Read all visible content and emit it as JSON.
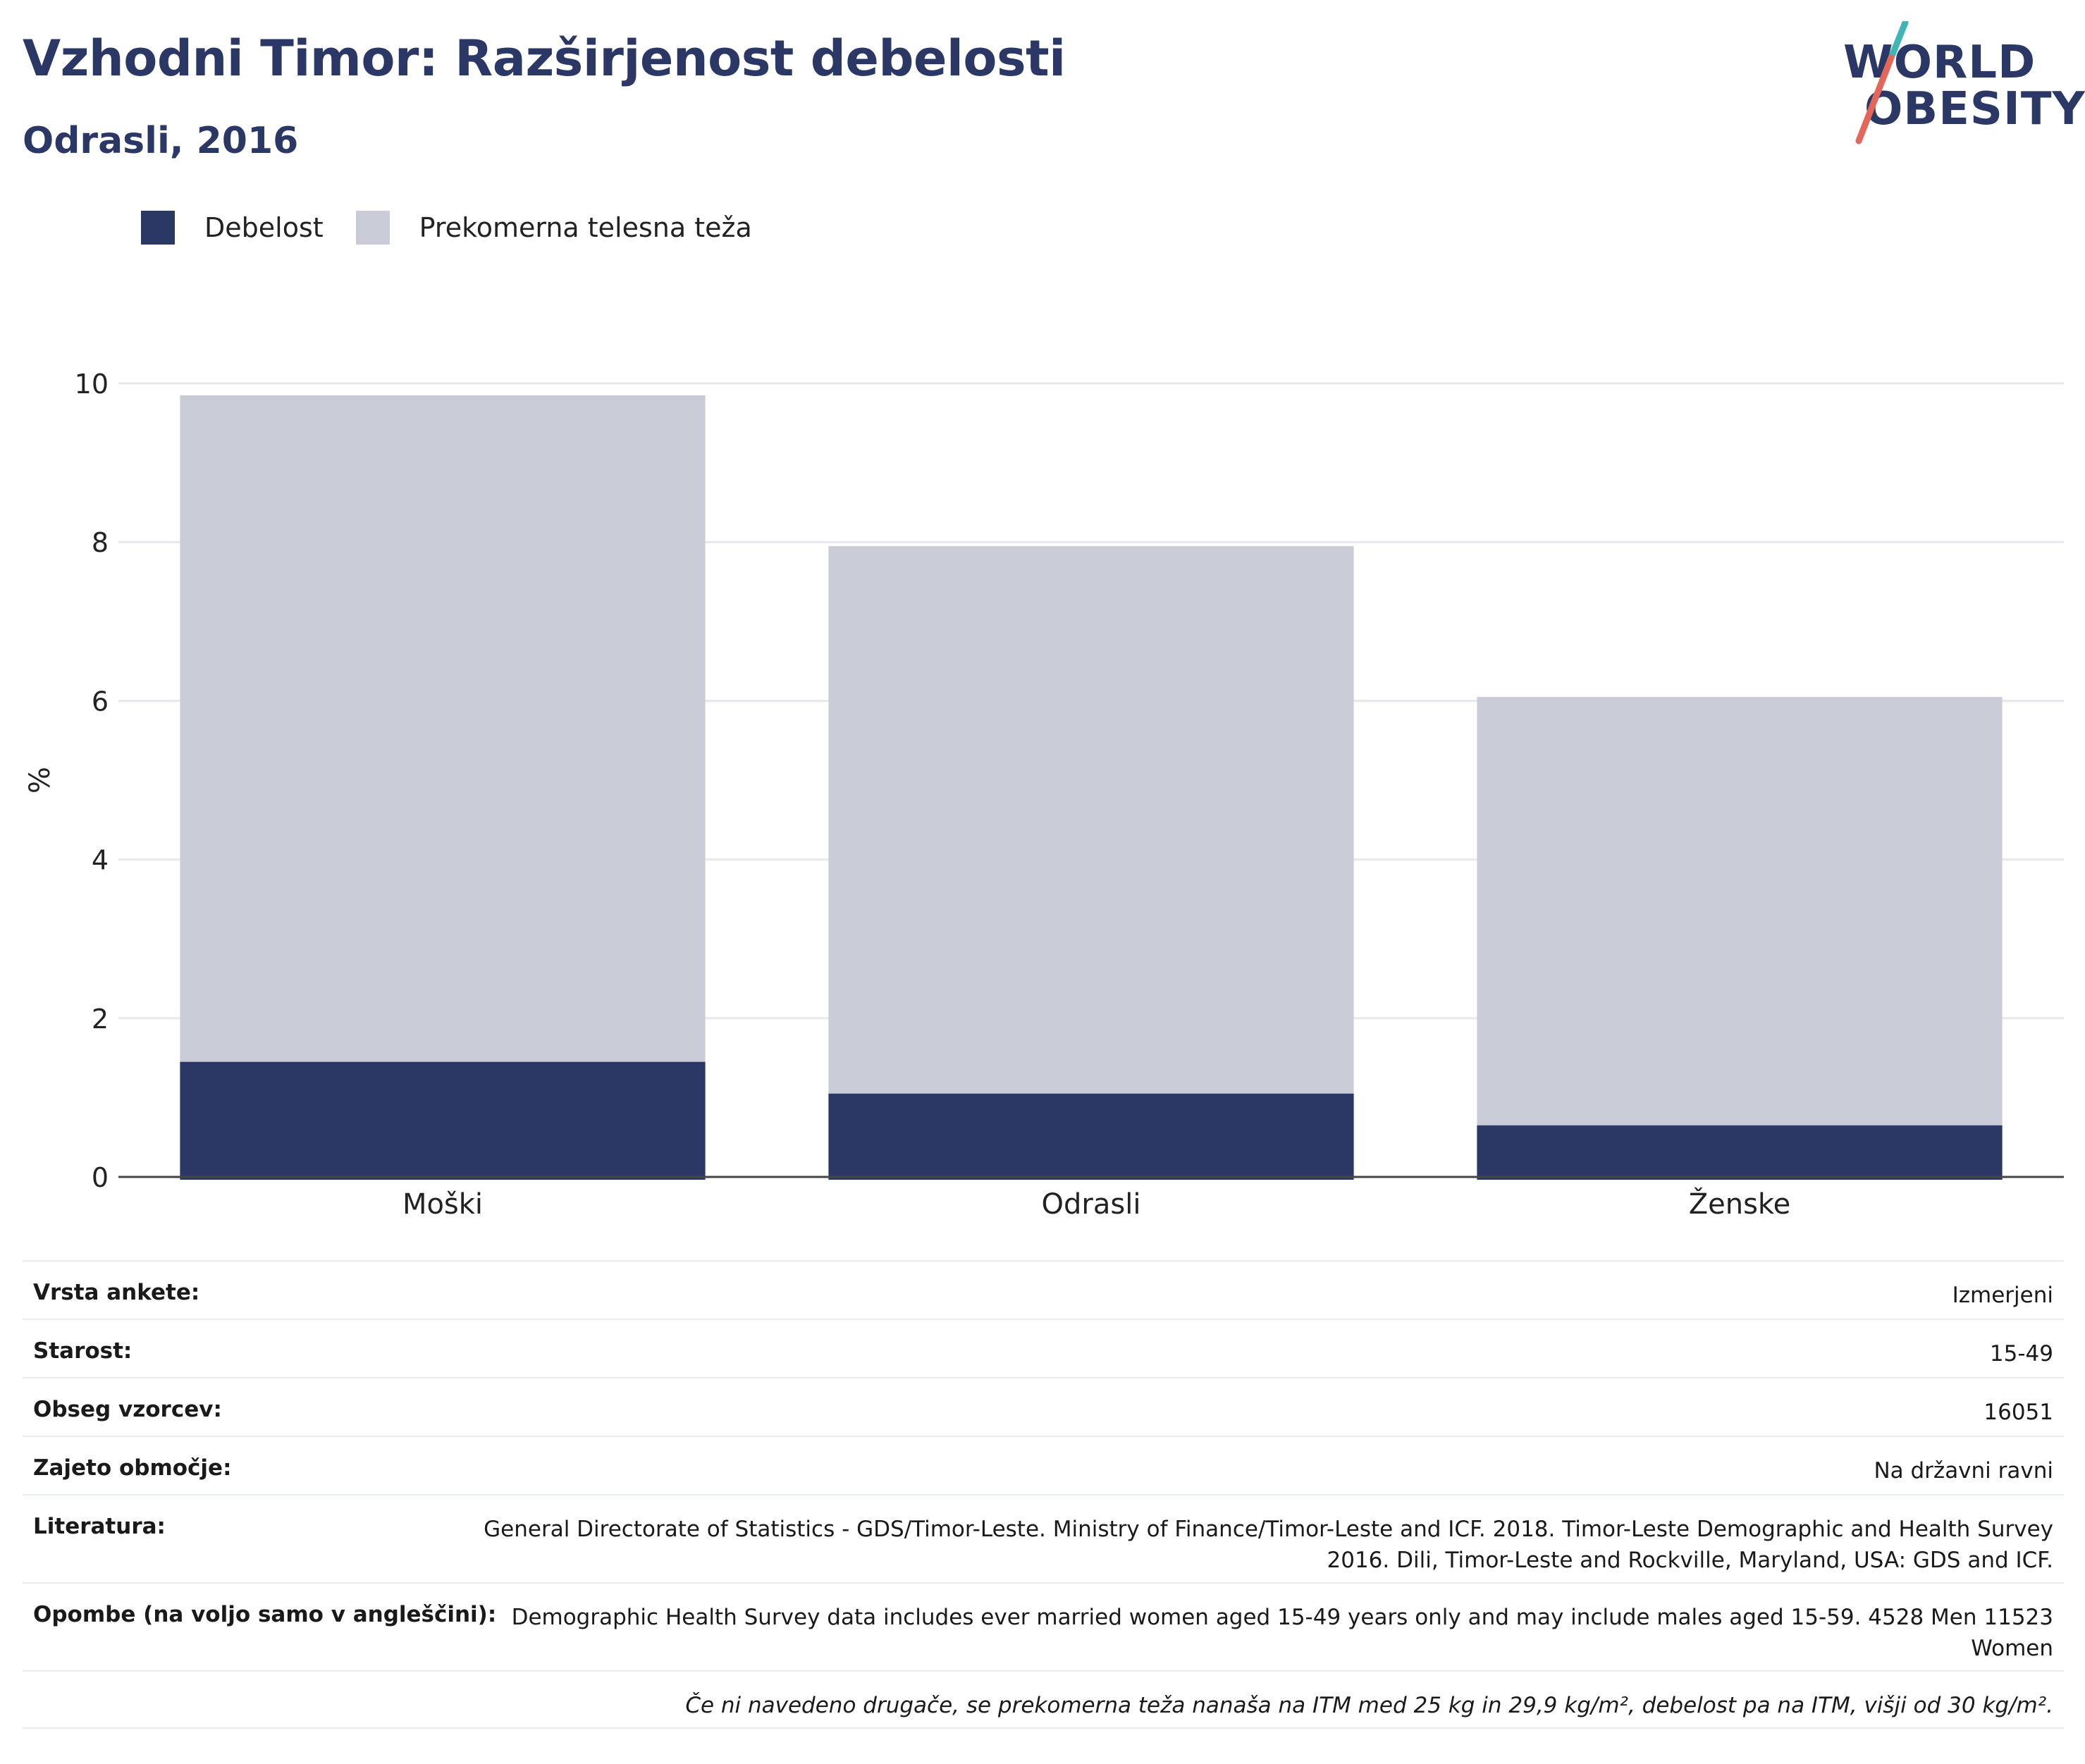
{
  "header": {
    "title": "Vzhodni Timor: Razširjenost debelosti",
    "subtitle": "Odrasli, 2016"
  },
  "logo": {
    "line1": "WORLD",
    "line2": "OBESITY",
    "accent_teal": "#3fb6b5",
    "accent_red": "#e2675a"
  },
  "legend": [
    {
      "label": "Debelost",
      "color": "#2b3764"
    },
    {
      "label": "Prekomerna telesna teža",
      "color": "#c9ccd7"
    }
  ],
  "chart_data": {
    "type": "bar",
    "stacked": false,
    "overlay": true,
    "categories": [
      "Moški",
      "Odrasli",
      "Ženske"
    ],
    "series": [
      {
        "name": "Prekomerna telesna teža",
        "values": [
          9.85,
          7.95,
          6.05
        ],
        "color": "#c9ccd7"
      },
      {
        "name": "Debelost",
        "values": [
          1.45,
          1.05,
          0.65
        ],
        "color": "#2b3764"
      }
    ],
    "ylabel": "%",
    "ylim": [
      0,
      10
    ],
    "yticks": [
      "0",
      "2",
      "4",
      "6",
      "8",
      "10"
    ],
    "grid": true
  },
  "meta": {
    "rows": [
      {
        "key": "Vrsta ankete:",
        "value": "Izmerjeni"
      },
      {
        "key": "Starost:",
        "value": "15-49"
      },
      {
        "key": "Obseg vzorcev:",
        "value": "16051"
      },
      {
        "key": "Zajeto območje:",
        "value": "Na državni ravni"
      },
      {
        "key": "Literatura:",
        "value": "General Directorate of Statistics - GDS/Timor-Leste. Ministry of Finance/Timor-Leste and ICF. 2018. Timor-Leste Demographic and Health Survey 2016. Dili, Timor-Leste and Rockville, Maryland, USA: GDS and ICF."
      },
      {
        "key": "Opombe (na voljo samo v angleščini):",
        "value": "Demographic Health Survey data includes ever married women aged 15-49 years only and may include males aged 15-59. 4528 Men 11523 Women"
      }
    ],
    "footnote": "Če ni navedeno drugače, se prekomerna teža nanaša na ITM med 25 kg in 29,9 kg/m², debelost pa na ITM, višji od 30 kg/m²."
  }
}
